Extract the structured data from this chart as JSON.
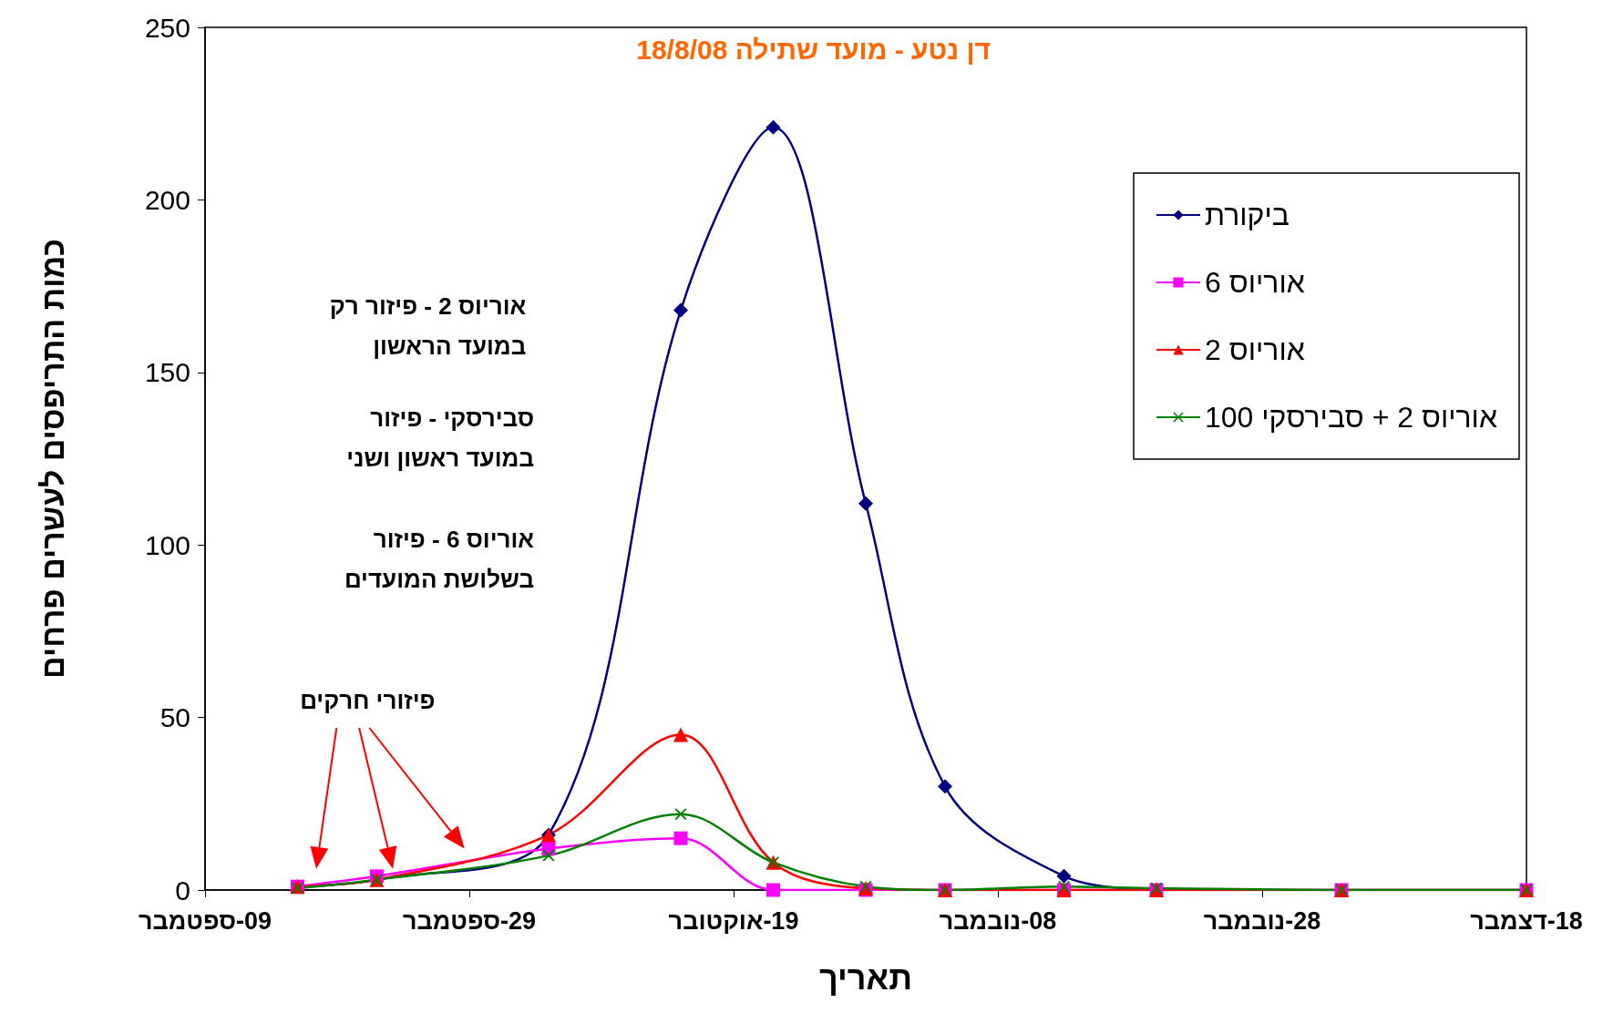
{
  "chart_data": {
    "type": "line",
    "title": "דן נטע - מועד שתילה 18/8/08",
    "xlabel": "תאריך",
    "ylabel": "כמות התריפסים לעשרים פרחים",
    "x": [
      "--09-16",
      "--09-22",
      "--10-05",
      "--10-15",
      "--10-22",
      "--10-29",
      "--11-04",
      "--11-13",
      "--11-20",
      "--12-04",
      "--12-18"
    ],
    "series": [
      {
        "name": "ביקורת",
        "color": "#000080",
        "marker": "diamond",
        "values": [
          1,
          3,
          16,
          168,
          221,
          112,
          30,
          4,
          0,
          null,
          null
        ]
      },
      {
        "name": "אוריוס 6",
        "color": "#ff00ff",
        "marker": "square",
        "values": [
          1,
          4,
          12,
          15,
          0,
          0,
          0,
          0,
          0,
          0,
          0
        ]
      },
      {
        "name": "אוריוס 2",
        "color": "#ff0000",
        "marker": "triangle",
        "values": [
          1,
          3,
          16,
          45,
          8,
          0.5,
          0,
          0,
          0,
          0,
          0
        ]
      },
      {
        "name": "אוריוס 2 + סבירסקי 100",
        "color": "#008000",
        "marker": "cross",
        "values": [
          0.5,
          3,
          10,
          22,
          8,
          1,
          0,
          1,
          0.5,
          0,
          0
        ]
      }
    ],
    "xlim": [
      "--09-09",
      "--12-18"
    ],
    "xticks": [
      {
        "value": "--09-09",
        "label": "09-ספטמבר"
      },
      {
        "value": "--09-29",
        "label": "29-ספטמבר"
      },
      {
        "value": "--10-19",
        "label": "19-אוקטובר"
      },
      {
        "value": "--11-08",
        "label": "08-נובמבר"
      },
      {
        "value": "--11-28",
        "label": "28-נובמבר"
      },
      {
        "value": "--12-18",
        "label": "18-דצמבר"
      }
    ],
    "ylim": [
      0,
      250
    ],
    "yticks": [
      0,
      50,
      100,
      150,
      200,
      250
    ],
    "grid": false,
    "legend": "top right",
    "annotations": [
      "אוריוס 2 - פיזור רק\nבמועד הראשון",
      "סבירסקי - פיזור\nבמועד ראשון ושני",
      "אוריוס 6 - פיזור\nבשלושת המועדים",
      "פיזורי חרקים"
    ]
  }
}
